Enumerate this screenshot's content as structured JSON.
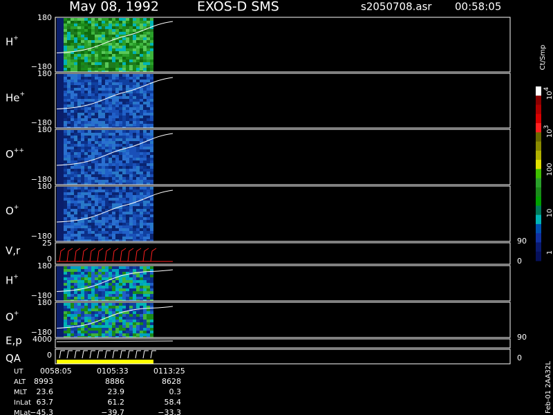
{
  "header": {
    "date": "May 08, 1992",
    "instrument": "EXOS-D SMS",
    "file": "s2050708.asr",
    "time": "00:58:05"
  },
  "panels": [
    {
      "label": "H",
      "sup": "+",
      "left_ticks": [
        "180",
        "−180"
      ]
    },
    {
      "label": "He",
      "sup": "+",
      "left_ticks": [
        "180",
        "−180"
      ]
    },
    {
      "label": "O",
      "sup": "++",
      "left_ticks": [
        "180",
        "−180"
      ]
    },
    {
      "label": "O",
      "sup": "+",
      "left_ticks": [
        "180",
        "−180"
      ]
    },
    {
      "label": "V,r",
      "left_ticks": [
        "25",
        "0"
      ],
      "right_ticks": [
        "90",
        "0"
      ]
    },
    {
      "label": "H",
      "sup": "+",
      "left_ticks": [
        "180",
        "−180"
      ]
    },
    {
      "label": "O",
      "sup": "+",
      "left_ticks": [
        "180",
        "−180"
      ]
    },
    {
      "label": "E,p",
      "left_ticks": [
        "4000"
      ],
      "right_ticks": [
        "90"
      ]
    },
    {
      "label": "QA",
      "left_ticks": [
        "0"
      ],
      "right_ticks": [
        "0"
      ]
    }
  ],
  "colorbar": {
    "unit": "Ct/Smp",
    "labels": [
      {
        "base": "10",
        "exp": "4"
      },
      {
        "base": "10",
        "exp": "3"
      },
      {
        "base": "100"
      },
      {
        "base": "10"
      },
      {
        "base": "1"
      }
    ]
  },
  "footer": {
    "rows": [
      {
        "label": "UT",
        "cells": [
          "0058:05",
          "0105:33",
          "0113:25"
        ]
      },
      {
        "label": "ALT",
        "cells": [
          "8993",
          "8886",
          "8628"
        ]
      },
      {
        "label": "MLT",
        "cells": [
          "23.6",
          "23.9",
          "0.3"
        ]
      },
      {
        "label": "InLat",
        "cells": [
          "63.7",
          "61.2",
          "58.4"
        ]
      },
      {
        "label": "MLat",
        "cells": [
          "−45.3",
          "−39.7",
          "−33.3"
        ]
      }
    ],
    "side": "Feb-01 2AA32L"
  }
}
